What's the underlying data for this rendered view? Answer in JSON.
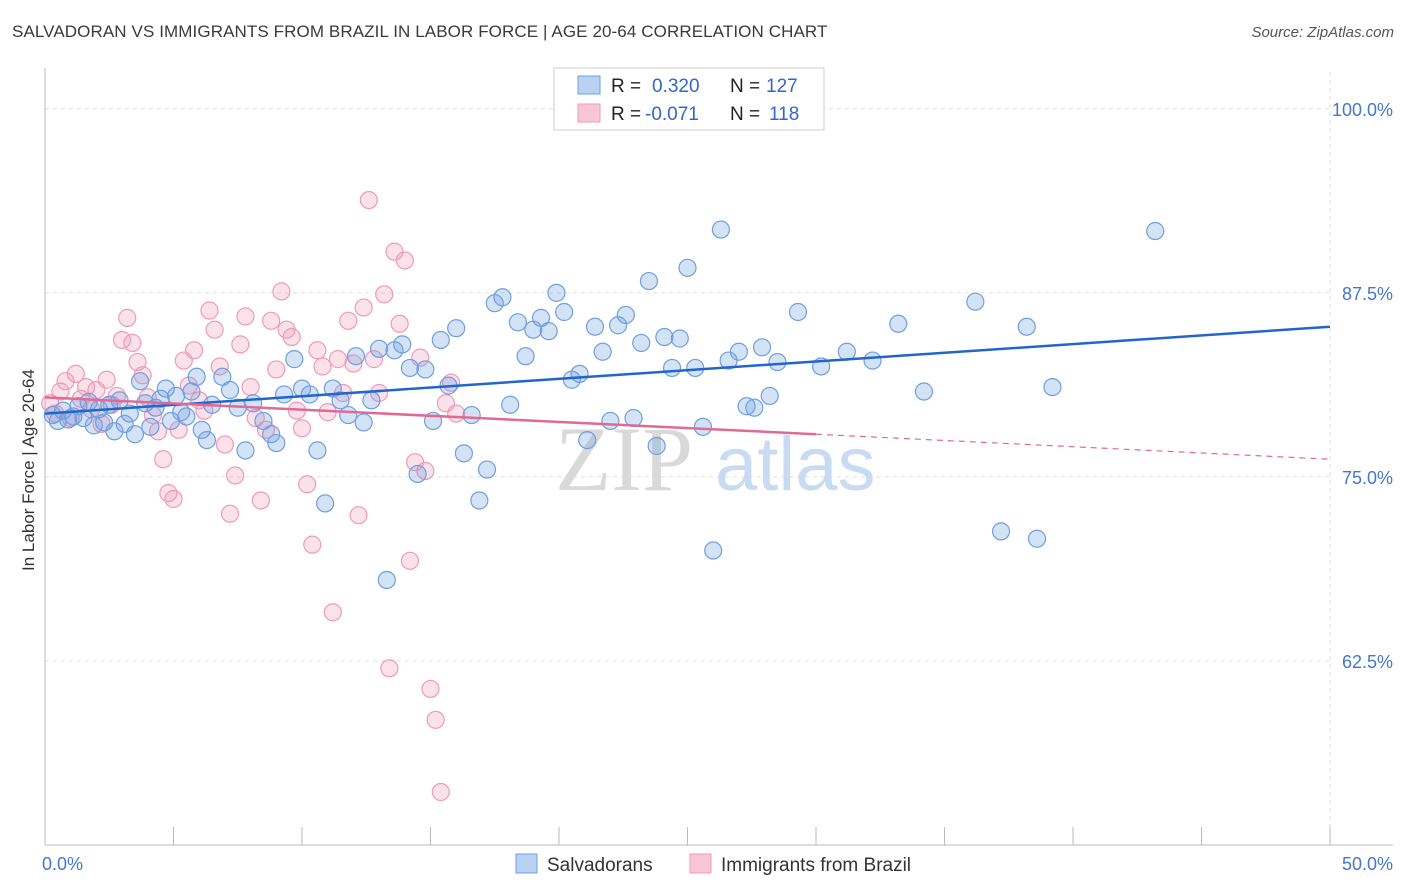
{
  "title": "SALVADORAN VS IMMIGRANTS FROM BRAZIL IN LABOR FORCE | AGE 20-64 CORRELATION CHART",
  "source": "Source: ZipAtlas.com",
  "watermark": {
    "zip": "ZIP",
    "atlas": "atlas"
  },
  "colors": {
    "blue": "#6f9fe0",
    "blue_line": "#2266cc",
    "pink": "#f09ab8",
    "pink_line": "#e06a95",
    "tick": "#4477cc"
  },
  "legend": {
    "rows": [
      {
        "r_label": "R = ",
        "r_value": "0.320",
        "n_label": "N = ",
        "n_value": "127"
      },
      {
        "r_label": "R = ",
        "r_value": "-0.071",
        "n_label": "N = ",
        "n_value": "118"
      }
    ]
  },
  "chart_data": {
    "type": "scatter",
    "xlabel": "",
    "ylabel": "In Labor Force | Age 20-64",
    "xlim": [
      0,
      50
    ],
    "ylim": [
      50,
      102.5
    ],
    "x_ticks": [
      "0.0%",
      "50.0%"
    ],
    "y_ticks": [
      {
        "value": 100,
        "label": "100.0%"
      },
      {
        "value": 87.5,
        "label": "87.5%"
      },
      {
        "value": 75,
        "label": "75.0%"
      },
      {
        "value": 62.5,
        "label": "62.5%"
      }
    ],
    "grid": true,
    "legend_position": "top-center",
    "series": [
      {
        "name": "Salvadorans",
        "color": "#6f9fe0",
        "trend": {
          "x0": 0,
          "y0": 79.3,
          "x1": 50,
          "y1": 85.2
        },
        "points": [
          [
            0.3,
            79.2
          ],
          [
            0.5,
            78.8
          ],
          [
            0.7,
            79.5
          ],
          [
            0.9,
            78.9
          ],
          [
            1.1,
            79.1
          ],
          [
            1.3,
            79.8
          ],
          [
            1.5,
            79.0
          ],
          [
            1.7,
            80.1
          ],
          [
            1.9,
            78.5
          ],
          [
            2.1,
            79.6
          ],
          [
            2.3,
            78.7
          ],
          [
            2.5,
            79.9
          ],
          [
            2.7,
            78.1
          ],
          [
            2.9,
            80.2
          ],
          [
            3.1,
            78.6
          ],
          [
            3.3,
            79.3
          ],
          [
            3.5,
            77.9
          ],
          [
            3.7,
            81.5
          ],
          [
            3.9,
            80.0
          ],
          [
            4.1,
            78.4
          ],
          [
            4.3,
            79.7
          ],
          [
            4.5,
            80.3
          ],
          [
            4.7,
            81.0
          ],
          [
            4.9,
            78.8
          ],
          [
            5.1,
            80.5
          ],
          [
            5.3,
            79.4
          ],
          [
            5.5,
            79.1
          ],
          [
            5.7,
            80.8
          ],
          [
            5.9,
            81.8
          ],
          [
            6.1,
            78.2
          ],
          [
            6.3,
            77.5
          ],
          [
            6.5,
            79.9
          ],
          [
            6.9,
            81.8
          ],
          [
            7.2,
            80.9
          ],
          [
            7.5,
            79.7
          ],
          [
            7.8,
            76.8
          ],
          [
            8.1,
            80.0
          ],
          [
            8.5,
            78.8
          ],
          [
            8.8,
            77.9
          ],
          [
            9.0,
            77.3
          ],
          [
            9.3,
            80.6
          ],
          [
            9.7,
            83.0
          ],
          [
            10.0,
            81.0
          ],
          [
            10.3,
            80.6
          ],
          [
            10.6,
            76.8
          ],
          [
            10.9,
            73.2
          ],
          [
            11.2,
            81.0
          ],
          [
            11.5,
            80.2
          ],
          [
            11.8,
            79.2
          ],
          [
            12.1,
            83.2
          ],
          [
            12.4,
            78.7
          ],
          [
            12.7,
            80.2
          ],
          [
            13.0,
            83.7
          ],
          [
            13.3,
            68.0
          ],
          [
            13.6,
            83.6
          ],
          [
            13.9,
            84.0
          ],
          [
            14.2,
            82.4
          ],
          [
            14.5,
            75.2
          ],
          [
            14.8,
            82.3
          ],
          [
            15.1,
            78.8
          ],
          [
            15.4,
            84.3
          ],
          [
            15.7,
            81.2
          ],
          [
            16.0,
            85.1
          ],
          [
            16.3,
            76.6
          ],
          [
            16.6,
            79.2
          ],
          [
            16.9,
            73.4
          ],
          [
            17.2,
            75.5
          ],
          [
            17.5,
            86.8
          ],
          [
            17.8,
            87.2
          ],
          [
            18.1,
            79.9
          ],
          [
            18.4,
            85.5
          ],
          [
            18.7,
            83.2
          ],
          [
            19.0,
            85.0
          ],
          [
            19.3,
            85.8
          ],
          [
            19.6,
            84.9
          ],
          [
            19.9,
            87.5
          ],
          [
            20.2,
            86.2
          ],
          [
            20.5,
            81.6
          ],
          [
            20.8,
            82.0
          ],
          [
            21.1,
            77.5
          ],
          [
            21.4,
            85.2
          ],
          [
            21.7,
            83.5
          ],
          [
            22.0,
            78.8
          ],
          [
            22.3,
            85.3
          ],
          [
            22.6,
            86.0
          ],
          [
            22.9,
            79.0
          ],
          [
            23.2,
            84.1
          ],
          [
            23.5,
            88.3
          ],
          [
            23.8,
            77.1
          ],
          [
            24.1,
            84.5
          ],
          [
            24.4,
            82.4
          ],
          [
            24.7,
            84.4
          ],
          [
            25.0,
            89.2
          ],
          [
            25.3,
            82.4
          ],
          [
            25.6,
            78.4
          ],
          [
            26.0,
            70.0
          ],
          [
            26.3,
            91.8
          ],
          [
            26.6,
            82.9
          ],
          [
            27.0,
            83.5
          ],
          [
            27.3,
            79.8
          ],
          [
            27.6,
            79.7
          ],
          [
            27.9,
            83.8
          ],
          [
            28.2,
            80.5
          ],
          [
            28.5,
            82.8
          ],
          [
            29.3,
            86.2
          ],
          [
            30.2,
            82.5
          ],
          [
            31.2,
            83.5
          ],
          [
            32.2,
            82.9
          ],
          [
            33.2,
            85.4
          ],
          [
            34.2,
            80.8
          ],
          [
            36.2,
            86.9
          ],
          [
            37.2,
            71.3
          ],
          [
            38.2,
            85.2
          ],
          [
            38.6,
            70.8
          ],
          [
            39.2,
            81.1
          ],
          [
            43.2,
            91.7
          ]
        ]
      },
      {
        "name": "Immigrants from Brazil",
        "color": "#f09ab8",
        "trend": {
          "x0": 0,
          "y0": 80.4,
          "x1": 30,
          "y1": 77.9
        },
        "trend_dashed": {
          "x0": 30,
          "y0": 77.9,
          "x1": 50,
          "y1": 76.2
        },
        "points": [
          [
            0.2,
            80.0
          ],
          [
            0.4,
            79.3
          ],
          [
            0.6,
            80.8
          ],
          [
            0.8,
            81.5
          ],
          [
            1.0,
            79.0
          ],
          [
            1.2,
            82.0
          ],
          [
            1.4,
            80.3
          ],
          [
            1.6,
            81.1
          ],
          [
            1.8,
            79.6
          ],
          [
            2.0,
            80.9
          ],
          [
            2.2,
            78.6
          ],
          [
            2.4,
            81.6
          ],
          [
            2.6,
            79.9
          ],
          [
            2.8,
            80.5
          ],
          [
            3.0,
            84.3
          ],
          [
            3.2,
            85.8
          ],
          [
            3.4,
            84.1
          ],
          [
            3.6,
            82.8
          ],
          [
            3.8,
            81.9
          ],
          [
            4.0,
            80.4
          ],
          [
            4.2,
            79.2
          ],
          [
            4.4,
            78.1
          ],
          [
            4.6,
            76.2
          ],
          [
            4.8,
            73.9
          ],
          [
            5.0,
            73.5
          ],
          [
            5.2,
            78.2
          ],
          [
            5.4,
            82.9
          ],
          [
            5.6,
            81.2
          ],
          [
            5.8,
            83.6
          ],
          [
            6.0,
            80.2
          ],
          [
            6.2,
            79.5
          ],
          [
            6.4,
            86.3
          ],
          [
            6.6,
            85.0
          ],
          [
            6.8,
            82.5
          ],
          [
            7.0,
            77.2
          ],
          [
            7.2,
            72.5
          ],
          [
            7.4,
            75.1
          ],
          [
            7.6,
            84.0
          ],
          [
            7.8,
            85.9
          ],
          [
            8.0,
            81.1
          ],
          [
            8.2,
            79.0
          ],
          [
            8.4,
            73.4
          ],
          [
            8.6,
            78.2
          ],
          [
            8.8,
            85.6
          ],
          [
            9.0,
            82.3
          ],
          [
            9.2,
            87.6
          ],
          [
            9.4,
            85.0
          ],
          [
            9.6,
            84.5
          ],
          [
            9.8,
            79.5
          ],
          [
            10.0,
            78.3
          ],
          [
            10.2,
            74.5
          ],
          [
            10.4,
            70.4
          ],
          [
            10.6,
            83.6
          ],
          [
            10.8,
            82.5
          ],
          [
            11.0,
            79.4
          ],
          [
            11.2,
            65.8
          ],
          [
            11.4,
            83.0
          ],
          [
            11.6,
            80.7
          ],
          [
            11.8,
            85.6
          ],
          [
            12.0,
            82.7
          ],
          [
            12.2,
            72.4
          ],
          [
            12.4,
            86.5
          ],
          [
            12.6,
            93.8
          ],
          [
            12.8,
            83.0
          ],
          [
            13.0,
            80.7
          ],
          [
            13.2,
            87.4
          ],
          [
            13.4,
            62.0
          ],
          [
            13.6,
            90.3
          ],
          [
            13.8,
            85.4
          ],
          [
            14.0,
            89.7
          ],
          [
            14.2,
            69.3
          ],
          [
            14.4,
            76.0
          ],
          [
            14.6,
            83.1
          ],
          [
            14.8,
            75.4
          ],
          [
            15.0,
            60.6
          ],
          [
            15.2,
            58.5
          ],
          [
            15.4,
            53.6
          ],
          [
            15.6,
            80.0
          ],
          [
            15.8,
            81.4
          ],
          [
            16.0,
            79.3
          ]
        ]
      }
    ]
  },
  "bottom_legend": [
    "Salvadorans",
    "Immigrants from Brazil"
  ]
}
